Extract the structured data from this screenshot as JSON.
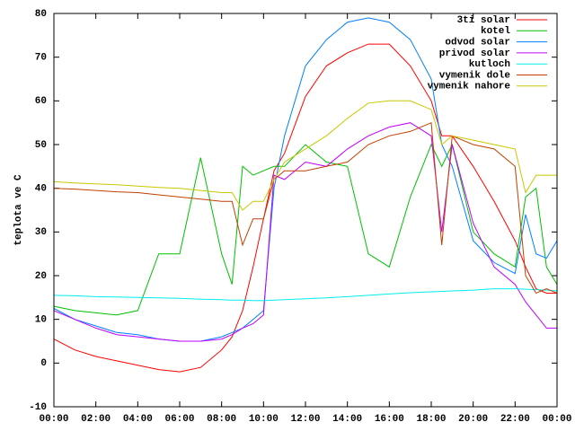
{
  "chart_data": {
    "type": "line",
    "ylabel": "teplota ve C",
    "x": [
      0,
      1,
      2,
      3,
      4,
      5,
      6,
      7,
      8,
      8.5,
      9,
      9.5,
      10,
      10.5,
      11,
      12,
      13,
      14,
      15,
      16,
      17,
      18,
      18.5,
      19,
      20,
      21,
      22,
      22.5,
      23,
      23.5,
      24
    ],
    "series": [
      {
        "name": "3ti solar",
        "color": "#ff0000",
        "values": [
          5.5,
          3,
          1.5,
          0.5,
          -0.5,
          -1.5,
          -2,
          -1,
          3,
          6,
          12,
          22,
          33,
          44,
          48,
          61,
          68,
          71,
          73,
          73,
          68,
          60,
          52,
          52,
          45,
          37,
          28,
          22,
          17,
          16,
          16
        ]
      },
      {
        "name": "kotel",
        "color": "#00c000",
        "values": [
          13,
          12,
          11.5,
          11,
          12,
          25,
          25,
          47,
          25,
          18,
          45,
          43,
          44,
          45,
          45,
          50,
          46,
          45,
          25,
          22,
          38,
          50,
          45,
          50,
          30,
          25,
          22,
          38,
          40,
          22,
          18
        ]
      },
      {
        "name": "odvod solar",
        "color": "#0080ff",
        "values": [
          12.5,
          10,
          8.5,
          7,
          6.5,
          5.5,
          5,
          5,
          6,
          7,
          8,
          10,
          12,
          40,
          52,
          68,
          74,
          78,
          79,
          78,
          74,
          65,
          50,
          45,
          28,
          23,
          20.5,
          34,
          25,
          24,
          28
        ]
      },
      {
        "name": "privod solar",
        "color": "#c000ff",
        "values": [
          12,
          10,
          8,
          6.5,
          6,
          5.5,
          5,
          5,
          5.5,
          6.5,
          8,
          9,
          11,
          43,
          42,
          46,
          45,
          49,
          52,
          54,
          55,
          52,
          30,
          50,
          32,
          22,
          18,
          14,
          11,
          8,
          8
        ]
      },
      {
        "name": "kutloch",
        "color": "#00eeee",
        "values": [
          15.5,
          15.4,
          15.2,
          15.1,
          15,
          14.9,
          14.8,
          14.6,
          14.5,
          14.4,
          14.4,
          14.3,
          14.3,
          14.4,
          14.5,
          14.7,
          14.9,
          15.2,
          15.5,
          15.8,
          16.1,
          16.3,
          16.4,
          16.5,
          16.7,
          17,
          17,
          16.9,
          16.8,
          16.7,
          16.5
        ]
      },
      {
        "name": "vymenik dole",
        "color": "#c04000",
        "values": [
          40,
          39.8,
          39.5,
          39.2,
          39,
          38.5,
          38,
          37.5,
          37,
          37,
          27,
          33,
          33,
          42,
          44,
          44,
          45,
          46,
          50,
          52,
          53,
          55,
          27,
          52,
          50,
          49,
          45,
          20,
          16,
          17,
          16
        ]
      },
      {
        "name": "vymenik nahore",
        "color": "#c8c800",
        "values": [
          41.5,
          41.2,
          41,
          40.8,
          40.5,
          40.2,
          40,
          39.5,
          39,
          39,
          35,
          37,
          37,
          42,
          46,
          49,
          52,
          56,
          59.5,
          60,
          60,
          58,
          50,
          52,
          51,
          50,
          49,
          39,
          43,
          43,
          43
        ]
      }
    ],
    "xlim": [
      0,
      24
    ],
    "xticks": [
      {
        "value": 0,
        "label": "00:00"
      },
      {
        "value": 2,
        "label": "02:00"
      },
      {
        "value": 4,
        "label": "04:00"
      },
      {
        "value": 6,
        "label": "06:00"
      },
      {
        "value": 8,
        "label": "08:00"
      },
      {
        "value": 10,
        "label": "10:00"
      },
      {
        "value": 12,
        "label": "12:00"
      },
      {
        "value": 14,
        "label": "14:00"
      },
      {
        "value": 16,
        "label": "16:00"
      },
      {
        "value": 18,
        "label": "18:00"
      },
      {
        "value": 20,
        "label": "20:00"
      },
      {
        "value": 22,
        "label": "22:00"
      },
      {
        "value": 24,
        "label": "00:00"
      }
    ],
    "ylim": [
      -10,
      80
    ],
    "yticks": [
      -10,
      0,
      10,
      20,
      30,
      40,
      50,
      60,
      70,
      80
    ],
    "legend": "upper right"
  }
}
